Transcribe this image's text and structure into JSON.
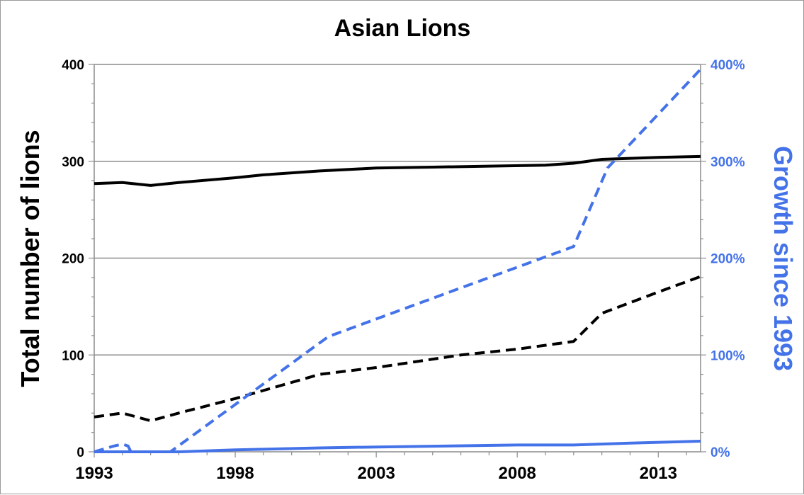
{
  "chart_data": {
    "type": "line",
    "title": "Asian Lions",
    "ylabel": "Total number of lions",
    "y2label": "Growth since 1993",
    "xlim": [
      1993,
      2014.5
    ],
    "ylim": [
      0,
      400
    ],
    "y2lim": [
      0,
      4
    ],
    "x_ticks": [
      1993,
      1998,
      2003,
      2008,
      2013
    ],
    "y_ticks": [
      0,
      100,
      200,
      300,
      400
    ],
    "y2_ticks": [
      "0%",
      "100%",
      "200%",
      "300%",
      "400%"
    ],
    "grid": true,
    "colors": {
      "primary": "#000000",
      "secondary": "#4472e8"
    },
    "series": [
      {
        "axis": "left",
        "style": "solid",
        "color": "#000000",
        "x": [
          1993,
          1994,
          1995,
          1996,
          1998,
          1999,
          2001,
          2003,
          2005,
          2007,
          2009,
          2010,
          2011,
          2012,
          2013,
          2014.5
        ],
        "values": [
          277,
          278,
          275,
          278,
          283,
          286,
          290,
          293,
          294,
          295,
          296,
          298,
          302,
          303,
          304,
          305
        ]
      },
      {
        "axis": "left",
        "style": "dashed",
        "color": "#000000",
        "x": [
          1993,
          1994,
          1995,
          1996,
          1998,
          2001,
          2003,
          2006,
          2008,
          2010,
          2011,
          2013,
          2014.5
        ],
        "values": [
          36,
          40,
          32,
          40,
          55,
          80,
          87,
          100,
          106,
          114,
          143,
          165,
          181
        ]
      },
      {
        "axis": "right",
        "style": "dashed",
        "color": "#4472e8",
        "x": [
          1993,
          1993.7,
          1994,
          1994.2,
          1994.3,
          1995.7,
          2001.3,
          2010,
          2011.2,
          2014.5
        ],
        "values": [
          0,
          0.06,
          0.08,
          0.06,
          0,
          0,
          1.19,
          2.12,
          2.93,
          3.95
        ]
      },
      {
        "axis": "right",
        "style": "solid",
        "color": "#4472e8",
        "x": [
          1993,
          1994,
          1995,
          1996,
          1998,
          2001,
          2003,
          2008,
          2010,
          2012,
          2014.5
        ],
        "values": [
          0,
          0,
          0,
          0,
          0.02,
          0.04,
          0.05,
          0.07,
          0.07,
          0.09,
          0.11
        ]
      }
    ]
  }
}
